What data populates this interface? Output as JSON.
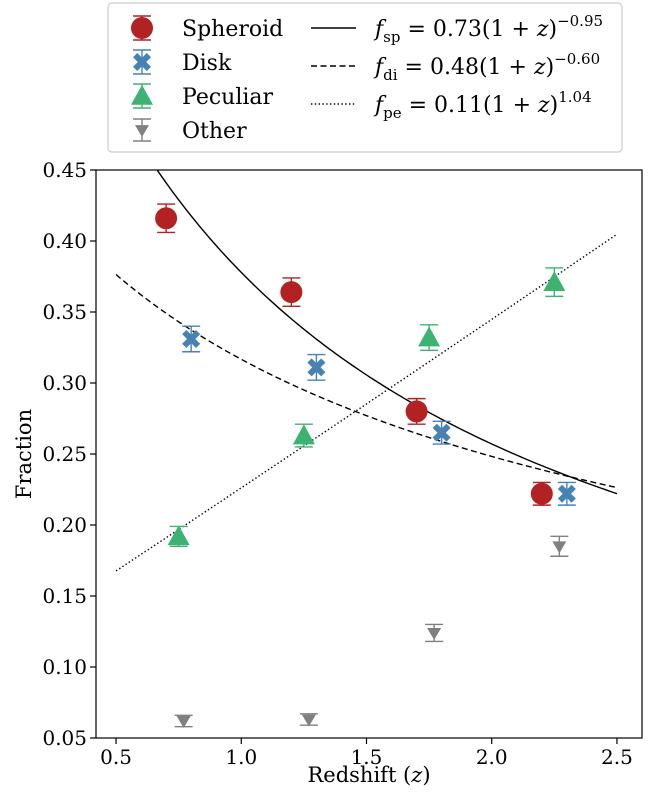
{
  "chart_data": {
    "type": "scatter",
    "xlabel": "Redshift (z)",
    "ylabel": "Fraction",
    "xlim": [
      0.42,
      2.6
    ],
    "ylim": [
      0.05,
      0.45
    ],
    "xticks": [
      0.5,
      1.0,
      1.5,
      2.0,
      2.5
    ],
    "xtick_labels": [
      "0.5",
      "1.0",
      "1.5",
      "2.0",
      "2.5"
    ],
    "yticks": [
      0.05,
      0.1,
      0.15,
      0.2,
      0.25,
      0.3,
      0.35,
      0.4,
      0.45
    ],
    "ytick_labels": [
      "0.05",
      "0.10",
      "0.15",
      "0.20",
      "0.25",
      "0.30",
      "0.35",
      "0.40",
      "0.45"
    ],
    "grid": false,
    "legend_position": "top",
    "series": [
      {
        "name": "Spheroid",
        "marker": "circle",
        "color": "#b22222",
        "points": [
          {
            "x": 0.7,
            "y": 0.416,
            "err": 0.01
          },
          {
            "x": 1.2,
            "y": 0.364,
            "err": 0.01
          },
          {
            "x": 1.7,
            "y": 0.28,
            "err": 0.009
          },
          {
            "x": 2.2,
            "y": 0.222,
            "err": 0.008
          }
        ]
      },
      {
        "name": "Disk",
        "marker": "x",
        "color": "#4682b4",
        "points": [
          {
            "x": 0.8,
            "y": 0.331,
            "err": 0.009
          },
          {
            "x": 1.3,
            "y": 0.311,
            "err": 0.009
          },
          {
            "x": 1.8,
            "y": 0.265,
            "err": 0.008
          },
          {
            "x": 2.3,
            "y": 0.222,
            "err": 0.008
          }
        ]
      },
      {
        "name": "Peculiar",
        "marker": "triangle-up",
        "color": "#3cb371",
        "points": [
          {
            "x": 0.75,
            "y": 0.192,
            "err": 0.007
          },
          {
            "x": 1.25,
            "y": 0.263,
            "err": 0.008
          },
          {
            "x": 1.75,
            "y": 0.332,
            "err": 0.009
          },
          {
            "x": 2.25,
            "y": 0.371,
            "err": 0.01
          }
        ]
      },
      {
        "name": "Other",
        "marker": "triangle-down",
        "color": "#808080",
        "points": [
          {
            "x": 0.77,
            "y": 0.062,
            "err": 0.004
          },
          {
            "x": 1.27,
            "y": 0.063,
            "err": 0.004
          },
          {
            "x": 1.77,
            "y": 0.124,
            "err": 0.006
          },
          {
            "x": 2.27,
            "y": 0.185,
            "err": 0.007
          }
        ]
      }
    ],
    "fits": [
      {
        "name": "f_sp = 0.73(1+z)^-0.95",
        "label_sym": "f",
        "label_sub": "sp",
        "label_body": " = 0.73(1 + ",
        "label_exp": "−0.95",
        "A": 0.73,
        "B": -0.95,
        "linestyle": "solid",
        "color": "#000000"
      },
      {
        "name": "f_di = 0.48(1+z)^-0.60",
        "label_sym": "f",
        "label_sub": "di",
        "label_body": " = 0.48(1 + ",
        "label_exp": "−0.60",
        "A": 0.48,
        "B": -0.6,
        "linestyle": "dashed",
        "color": "#000000"
      },
      {
        "name": "f_pe = 0.11(1+z)^1.04",
        "label_sym": "f",
        "label_sub": "pe",
        "label_body": " = 0.11(1 + ",
        "label_exp": "1.04",
        "A": 0.11,
        "B": 1.04,
        "linestyle": "dotted",
        "color": "#000000"
      }
    ],
    "fit_xrange": [
      0.5,
      2.5
    ]
  }
}
